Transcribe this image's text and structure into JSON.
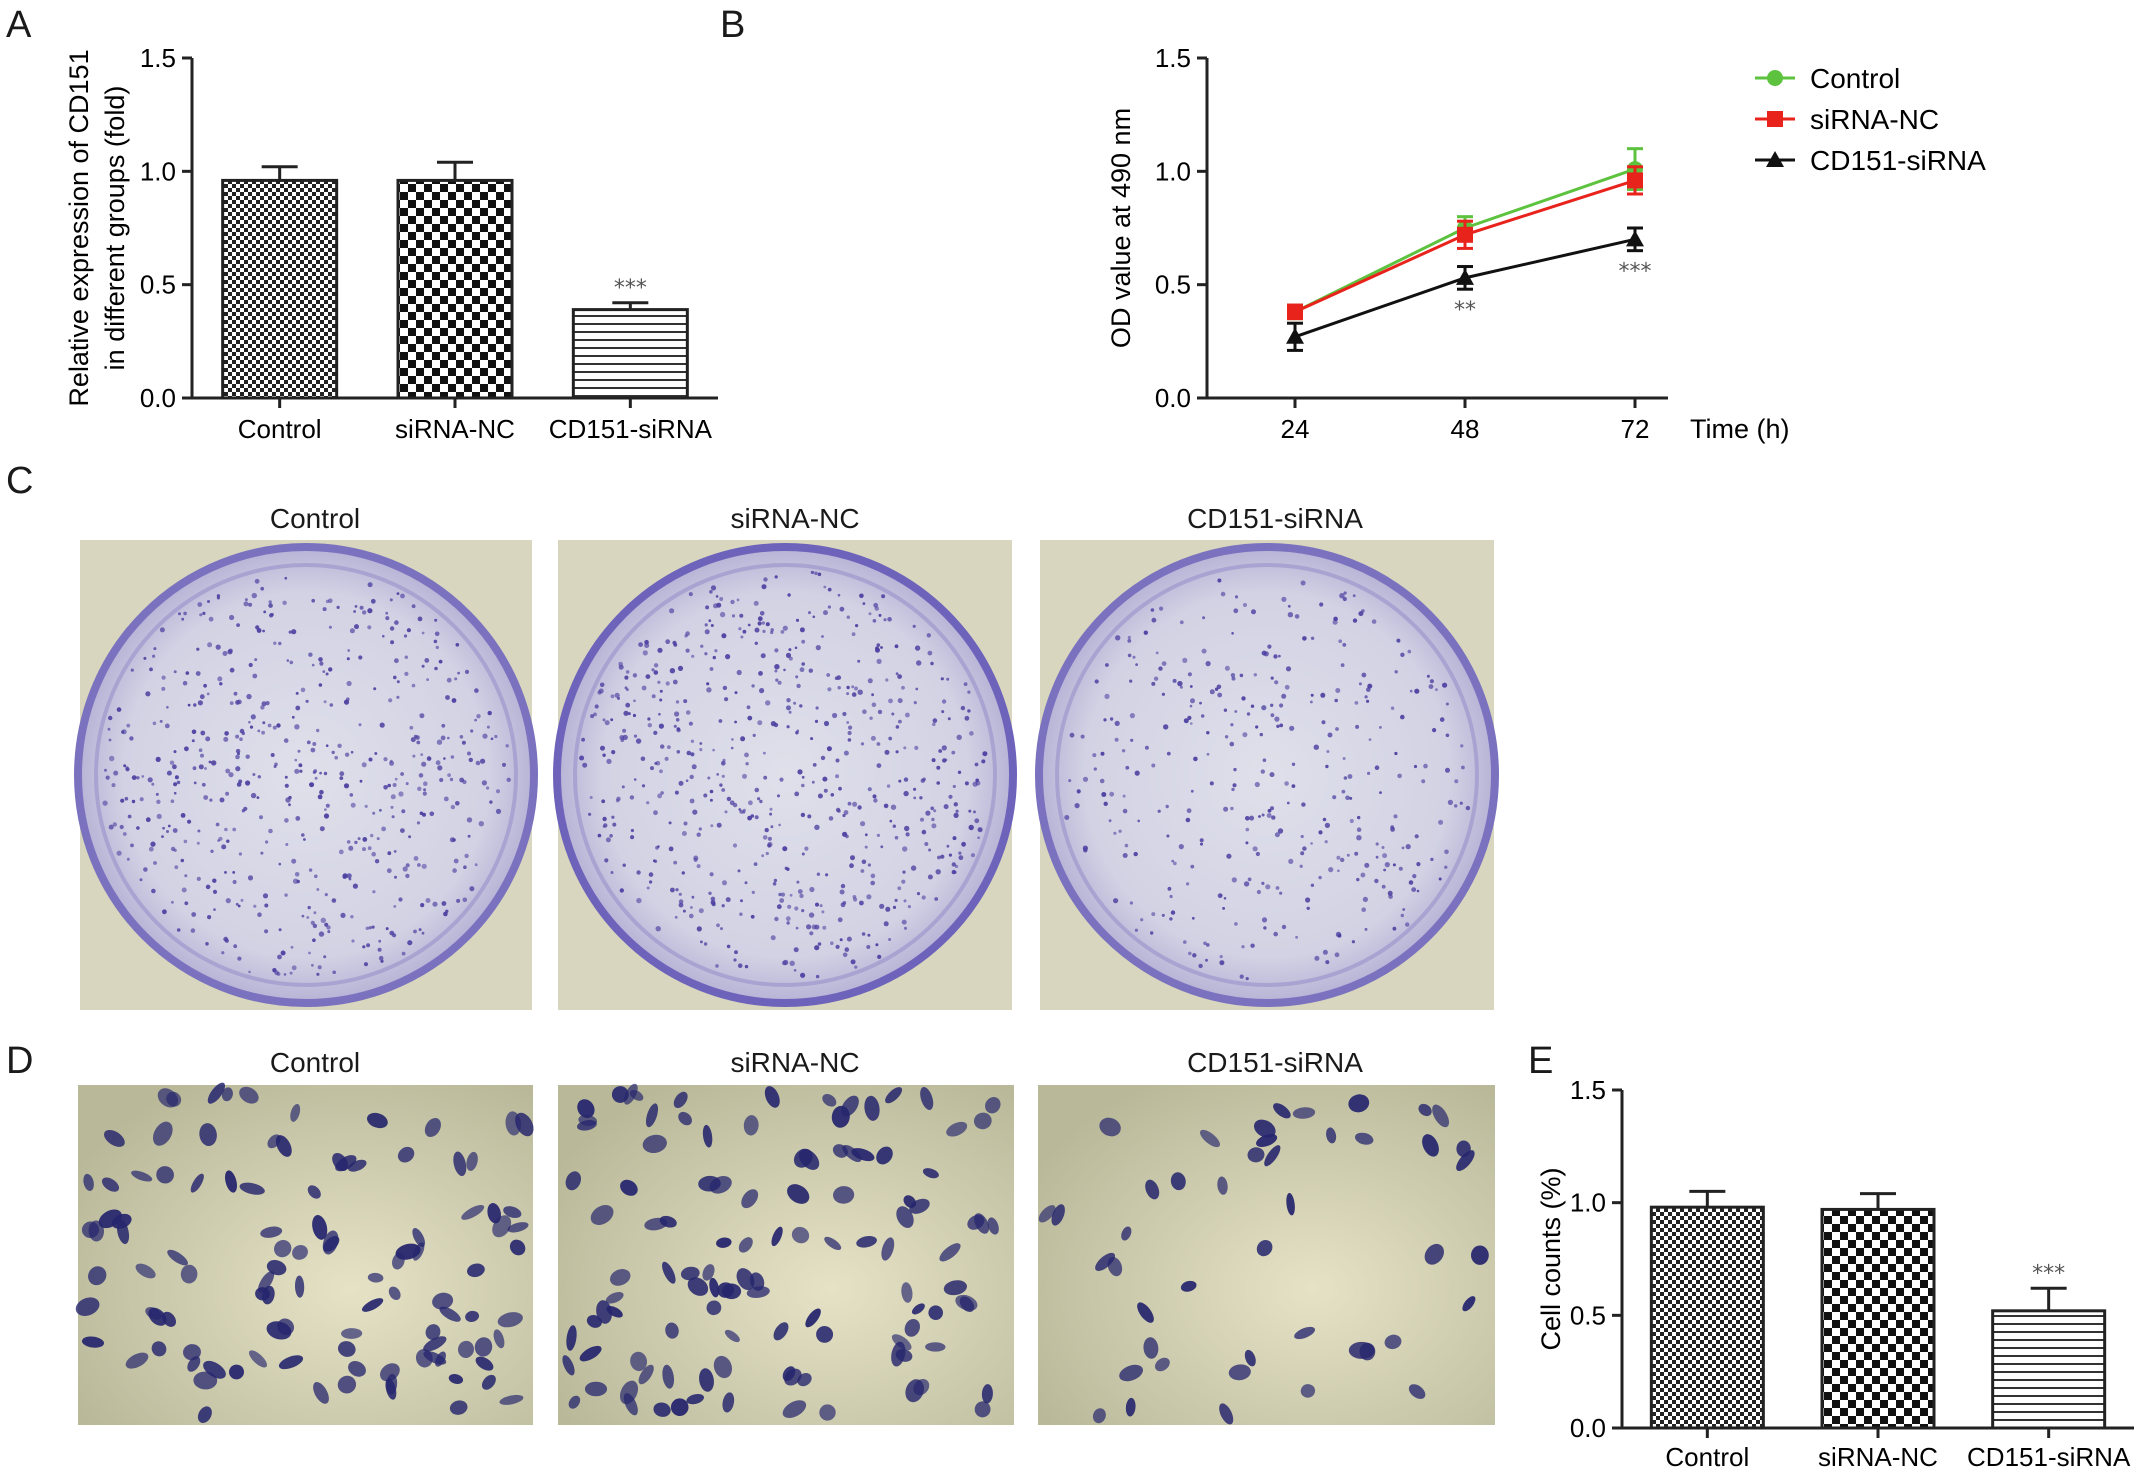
{
  "panels": {
    "a": "A",
    "b": "B",
    "c": "C",
    "d": "D",
    "e": "E"
  },
  "colony_labels": [
    "Control",
    "siRNA-NC",
    "CD151-siRNA"
  ],
  "invasion_labels": [
    "Control",
    "siRNA-NC",
    "CD151-siRNA"
  ],
  "colors": {
    "control": "#5dc23d",
    "sirna_nc": "#e8231c",
    "cd151": "#111111",
    "dish_purple": "#5b4fb0",
    "cell_stain": "#2a2a7a",
    "field_bg": "#c9c7a8"
  },
  "chart_data": [
    {
      "id": "A",
      "type": "bar",
      "categories": [
        "Control",
        "siRNA-NC",
        "CD151-siRNA"
      ],
      "values": [
        0.96,
        0.96,
        0.39
      ],
      "errors": [
        0.06,
        0.08,
        0.03
      ],
      "patterns": [
        "checker-fine",
        "checker-coarse",
        "horizontal-lines"
      ],
      "significance": [
        "",
        "",
        "***"
      ],
      "ylabel_lines": [
        "Relative expression of CD151",
        "in different groups (fold)"
      ],
      "ylim": [
        0,
        1.5
      ],
      "yticks": [
        "0.0",
        "0.5",
        "1.0",
        "1.5"
      ]
    },
    {
      "id": "B",
      "type": "line",
      "x": [
        "24",
        "48",
        "72"
      ],
      "xlabel": "Time (h)",
      "ylabel": "OD value at 490 nm",
      "ylim": [
        0,
        1.5
      ],
      "yticks": [
        "0.0",
        "0.5",
        "1.0",
        "1.5"
      ],
      "legend_position": "right",
      "series": [
        {
          "name": "Control",
          "values": [
            0.38,
            0.75,
            1.01
          ],
          "errors": [
            0.03,
            0.05,
            0.09
          ],
          "marker": "circle",
          "color": "#5dc23d"
        },
        {
          "name": "siRNA-NC",
          "values": [
            0.38,
            0.72,
            0.96
          ],
          "errors": [
            0.03,
            0.06,
            0.06
          ],
          "marker": "square",
          "color": "#e8231c"
        },
        {
          "name": "CD151-siRNA",
          "values": [
            0.27,
            0.53,
            0.7
          ],
          "errors": [
            0.06,
            0.05,
            0.05
          ],
          "marker": "triangle",
          "color": "#111111"
        }
      ],
      "significance": [
        "",
        "**",
        "***"
      ]
    },
    {
      "id": "E",
      "type": "bar",
      "categories": [
        "Control",
        "siRNA-NC",
        "CD151-siRNA"
      ],
      "values": [
        0.98,
        0.97,
        0.52
      ],
      "errors": [
        0.07,
        0.07,
        0.1
      ],
      "patterns": [
        "checker-fine",
        "checker-coarse",
        "horizontal-lines"
      ],
      "significance": [
        "",
        "",
        "***"
      ],
      "ylabel": "Cell counts (%)",
      "ylim": [
        0,
        1.5
      ],
      "yticks": [
        "0.0",
        "0.5",
        "1.0",
        "1.5"
      ]
    }
  ]
}
